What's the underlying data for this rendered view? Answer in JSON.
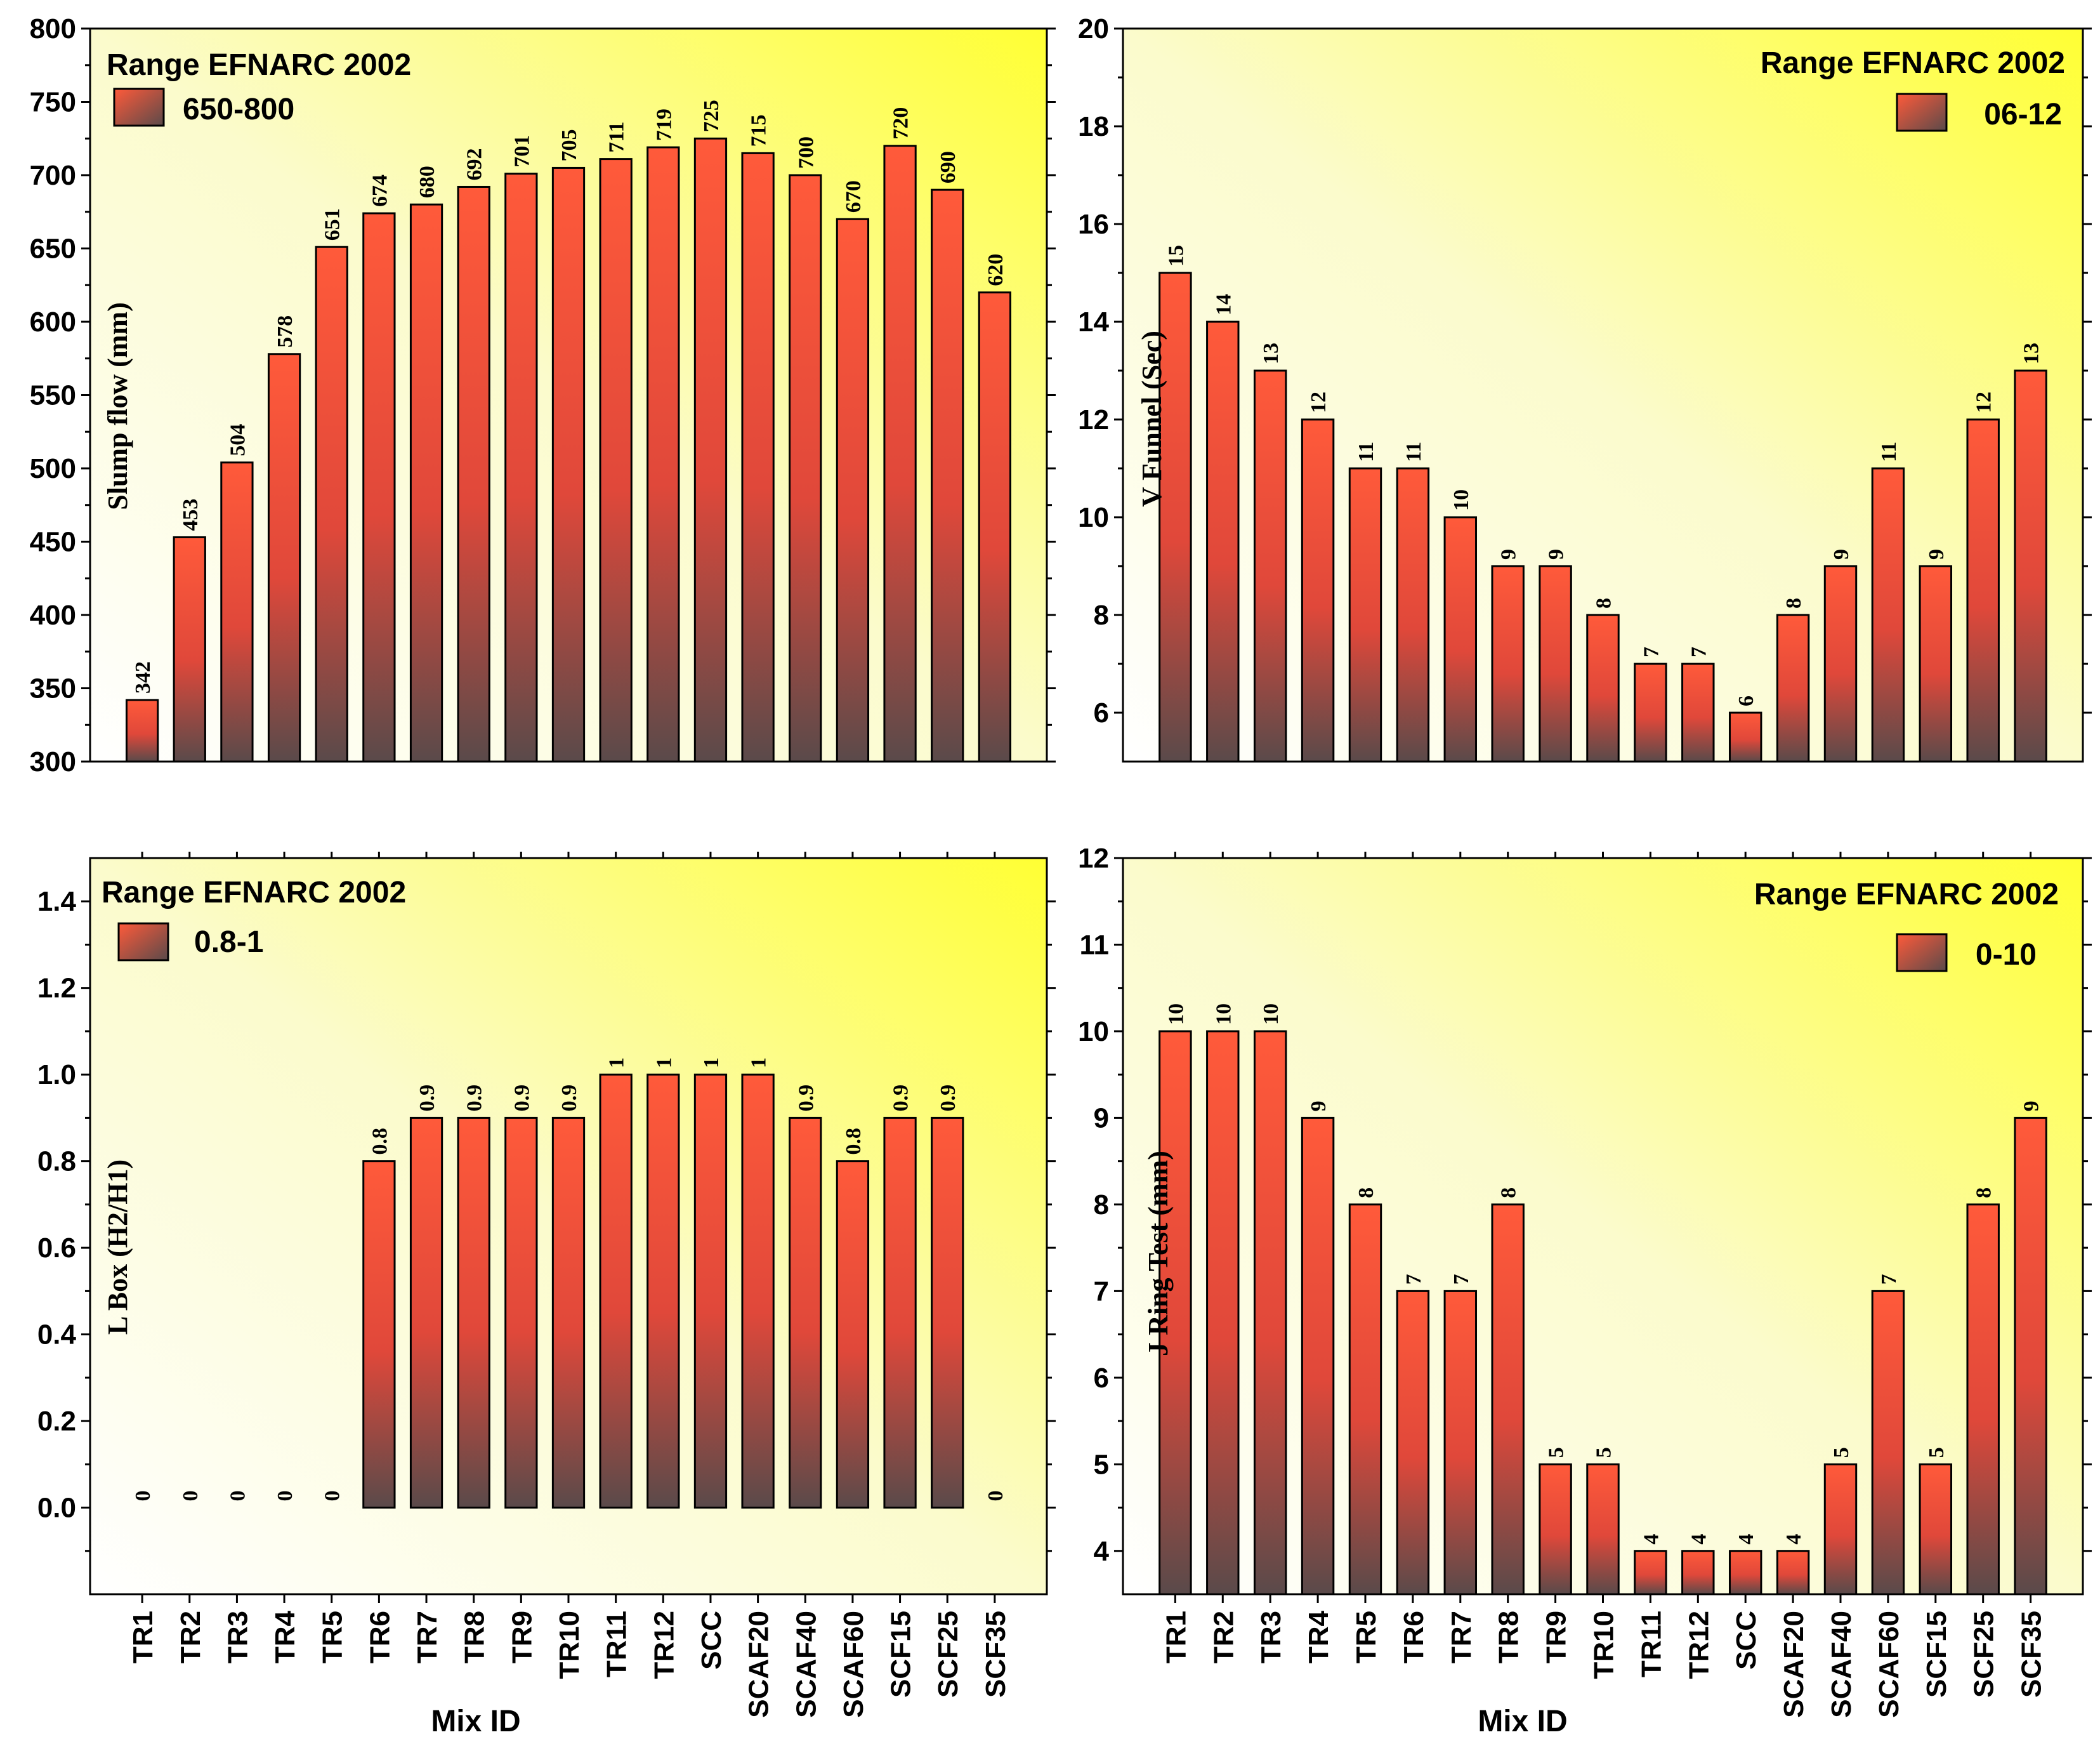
{
  "colors": {
    "bar_top": "#ff5a3a",
    "bar_bottom": "#5a4a4a",
    "bg_yellow": "#ffff33",
    "bg_white": "#ffffff"
  },
  "chart_data": [
    {
      "type": "bar",
      "ylabel": "Slump flow (mm)",
      "xlabel": "",
      "ylim": [
        300,
        800
      ],
      "yticks": [
        300,
        350,
        400,
        450,
        500,
        550,
        600,
        650,
        700,
        750,
        800
      ],
      "ytick_labels": [
        "300",
        "350",
        "400",
        "450",
        "500",
        "550",
        "600",
        "650",
        "700",
        "750",
        "800"
      ],
      "categories": [
        "TR1",
        "TR2",
        "TR3",
        "TR4",
        "TR5",
        "TR6",
        "TR7",
        "TR8",
        "TR9",
        "TR10",
        "TR11",
        "TR12",
        "SCC",
        "SCAF20",
        "SCAF40",
        "SCAF60",
        "SCF15",
        "SCF25",
        "SCF35"
      ],
      "values": [
        342,
        453,
        504,
        578,
        651,
        674,
        680,
        692,
        701,
        705,
        711,
        719,
        725,
        715,
        700,
        670,
        720,
        690,
        620
      ],
      "data_labels": [
        "342",
        "453",
        "504",
        "578",
        "651",
        "674",
        "680",
        "692",
        "701",
        "705",
        "711",
        "719",
        "725",
        "715",
        "700",
        "670",
        "720",
        "690",
        "620"
      ],
      "show_xticks": false,
      "legend": {
        "title": "Range EFNARC 2002",
        "entry": "650-800",
        "position": "top-left"
      }
    },
    {
      "type": "bar",
      "ylabel": "V Funnel (Sec)",
      "xlabel": "",
      "ylim": [
        5,
        20
      ],
      "yticks": [
        6,
        8,
        10,
        12,
        14,
        16,
        18,
        20
      ],
      "ytick_labels": [
        "6",
        "8",
        "10",
        "12",
        "14",
        "16",
        "18",
        "20"
      ],
      "categories": [
        "TR1",
        "TR2",
        "TR3",
        "TR4",
        "TR5",
        "TR6",
        "TR7",
        "TR8",
        "TR9",
        "TR10",
        "TR11",
        "TR12",
        "SCC",
        "SCAF20",
        "SCAF40",
        "SCAF60",
        "SCF15",
        "SCF25",
        "SCF35"
      ],
      "values": [
        15,
        14,
        13,
        12,
        11,
        11,
        10,
        9,
        9,
        8,
        7,
        7,
        6,
        8,
        9,
        11,
        9,
        12,
        13
      ],
      "data_labels": [
        "15",
        "14",
        "13",
        "12",
        "11",
        "11",
        "10",
        "9",
        "9",
        "8",
        "7",
        "7",
        "6",
        "8",
        "9",
        "11",
        "9",
        "12",
        "13"
      ],
      "show_xticks": false,
      "legend": {
        "title": "Range EFNARC 2002",
        "entry": "06-12",
        "position": "top-right"
      }
    },
    {
      "type": "bar",
      "ylabel": "L Box (H2/H1)",
      "xlabel": "Mix ID",
      "ylim": [
        -0.2,
        1.5
      ],
      "yticks": [
        0.0,
        0.2,
        0.4,
        0.6,
        0.8,
        1.0,
        1.2,
        1.4
      ],
      "ytick_labels": [
        "0.0",
        "0.2",
        "0.4",
        "0.6",
        "0.8",
        "1.0",
        "1.2",
        "1.4"
      ],
      "categories": [
        "TR1",
        "TR2",
        "TR3",
        "TR4",
        "TR5",
        "TR6",
        "TR7",
        "TR8",
        "TR9",
        "TR10",
        "TR11",
        "TR12",
        "SCC",
        "SCAF20",
        "SCAF40",
        "SCAF60",
        "SCF15",
        "SCF25",
        "SCF35"
      ],
      "values": [
        0,
        0,
        0,
        0,
        0,
        0.8,
        0.9,
        0.9,
        0.9,
        0.9,
        1,
        1,
        1,
        1,
        0.9,
        0.8,
        0.9,
        0.9,
        0
      ],
      "data_labels": [
        "0",
        "0",
        "0",
        "0",
        "0",
        "0.8",
        "0.9",
        "0.9",
        "0.9",
        "0.9",
        "1",
        "1",
        "1",
        "1",
        "0.9",
        "0.8",
        "0.9",
        "0.9",
        "0"
      ],
      "show_xticks": true,
      "legend": {
        "title": "Range EFNARC 2002",
        "entry": "0.8-1",
        "position": "top-left"
      }
    },
    {
      "type": "bar",
      "ylabel": "J Ring Test (mm)",
      "xlabel": "Mix ID",
      "ylim": [
        3.5,
        12
      ],
      "yticks": [
        4,
        5,
        6,
        7,
        8,
        9,
        10,
        11,
        12
      ],
      "ytick_labels": [
        "4",
        "5",
        "6",
        "7",
        "8",
        "9",
        "10",
        "11",
        "12"
      ],
      "categories": [
        "TR1",
        "TR2",
        "TR3",
        "TR4",
        "TR5",
        "TR6",
        "TR7",
        "TR8",
        "TR9",
        "TR10",
        "TR11",
        "TR12",
        "SCC",
        "SCAF20",
        "SCAF40",
        "SCAF60",
        "SCF15",
        "SCF25",
        "SCF35"
      ],
      "values": [
        10,
        10,
        10,
        9,
        8,
        7,
        7,
        8,
        5,
        5,
        4,
        4,
        4,
        4,
        5,
        7,
        5,
        8,
        9
      ],
      "data_labels": [
        "10",
        "10",
        "10",
        "9",
        "8",
        "7",
        "7",
        "8",
        "5",
        "5",
        "4",
        "4",
        "4",
        "4",
        "5",
        "7",
        "5",
        "8",
        "9"
      ],
      "show_xticks": true,
      "legend": {
        "title": "Range EFNARC 2002",
        "entry": "0-10",
        "position": "top-right"
      }
    }
  ]
}
